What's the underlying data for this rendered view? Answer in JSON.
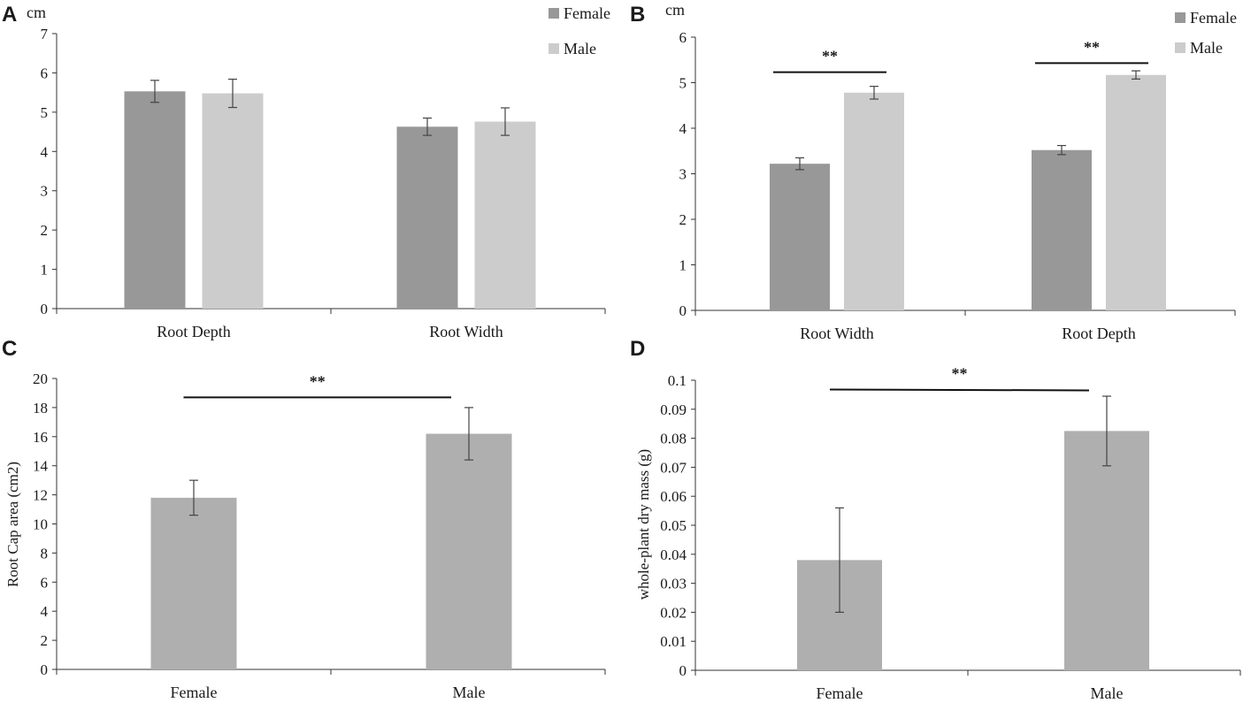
{
  "colors": {
    "female": "#989898",
    "male": "#cccccc",
    "single": "#aeafae",
    "axis": "#333333",
    "text": "#1a1a1a"
  },
  "chart_data": [
    {
      "panel": "A",
      "type": "bar",
      "unit_label": "cm",
      "ylabel": "",
      "ylim": [
        0,
        7
      ],
      "yticks": [
        0,
        1,
        2,
        3,
        4,
        5,
        6,
        7
      ],
      "categories": [
        "Root Depth",
        "Root Width"
      ],
      "legend": [
        "Female",
        "Male"
      ],
      "legend_position": "top-right",
      "series": [
        {
          "name": "Female",
          "values": [
            5.53,
            4.63
          ],
          "errors": [
            0.28,
            0.22
          ]
        },
        {
          "name": "Male",
          "values": [
            5.48,
            4.76
          ],
          "errors": [
            0.36,
            0.35
          ]
        }
      ],
      "significance": []
    },
    {
      "panel": "B",
      "type": "bar",
      "unit_label": "cm",
      "ylabel": "",
      "ylim": [
        0,
        6
      ],
      "yticks": [
        0,
        1,
        2,
        3,
        4,
        5,
        6
      ],
      "categories": [
        "Root Width",
        "Root Depth"
      ],
      "legend": [
        "Female",
        "Male"
      ],
      "legend_position": "top-right",
      "series": [
        {
          "name": "Female",
          "values": [
            3.22,
            3.52
          ],
          "errors": [
            0.13,
            0.1
          ]
        },
        {
          "name": "Male",
          "values": [
            4.78,
            5.17
          ],
          "errors": [
            0.14,
            0.09
          ]
        }
      ],
      "significance": [
        {
          "group": 0,
          "label": "**",
          "level": 5.23
        },
        {
          "group": 1,
          "label": "**",
          "level": 5.43
        }
      ]
    },
    {
      "panel": "C",
      "type": "bar",
      "unit_label": "",
      "ylabel": "Root Cap area (cm2)",
      "ylim": [
        0,
        20
      ],
      "yticks": [
        0,
        2,
        4,
        6,
        8,
        10,
        12,
        14,
        16,
        18,
        20
      ],
      "categories": [
        "Female",
        "Male"
      ],
      "legend": [],
      "series": [
        {
          "name": "Root Cap area",
          "values": [
            11.8,
            16.2
          ],
          "errors": [
            1.2,
            1.8
          ]
        }
      ],
      "significance": [
        {
          "from": 0,
          "to": 1,
          "label": "**",
          "level": 18.7
        }
      ]
    },
    {
      "panel": "D",
      "type": "bar",
      "unit_label": "",
      "ylabel": "whole-plant dry mass (g)",
      "ylim": [
        0,
        0.1
      ],
      "yticks": [
        0,
        0.01,
        0.02,
        0.03,
        0.04,
        0.05,
        0.06,
        0.07,
        0.08,
        0.09,
        0.1
      ],
      "categories": [
        "Female",
        "Male"
      ],
      "legend": [],
      "series": [
        {
          "name": "whole-plant dry mass",
          "values": [
            0.038,
            0.0825
          ],
          "errors": [
            0.018,
            0.012
          ]
        }
      ],
      "significance": [
        {
          "from": 0,
          "to": 1,
          "label": "**",
          "level": 0.0968,
          "level_end": 0.0965
        }
      ]
    }
  ]
}
